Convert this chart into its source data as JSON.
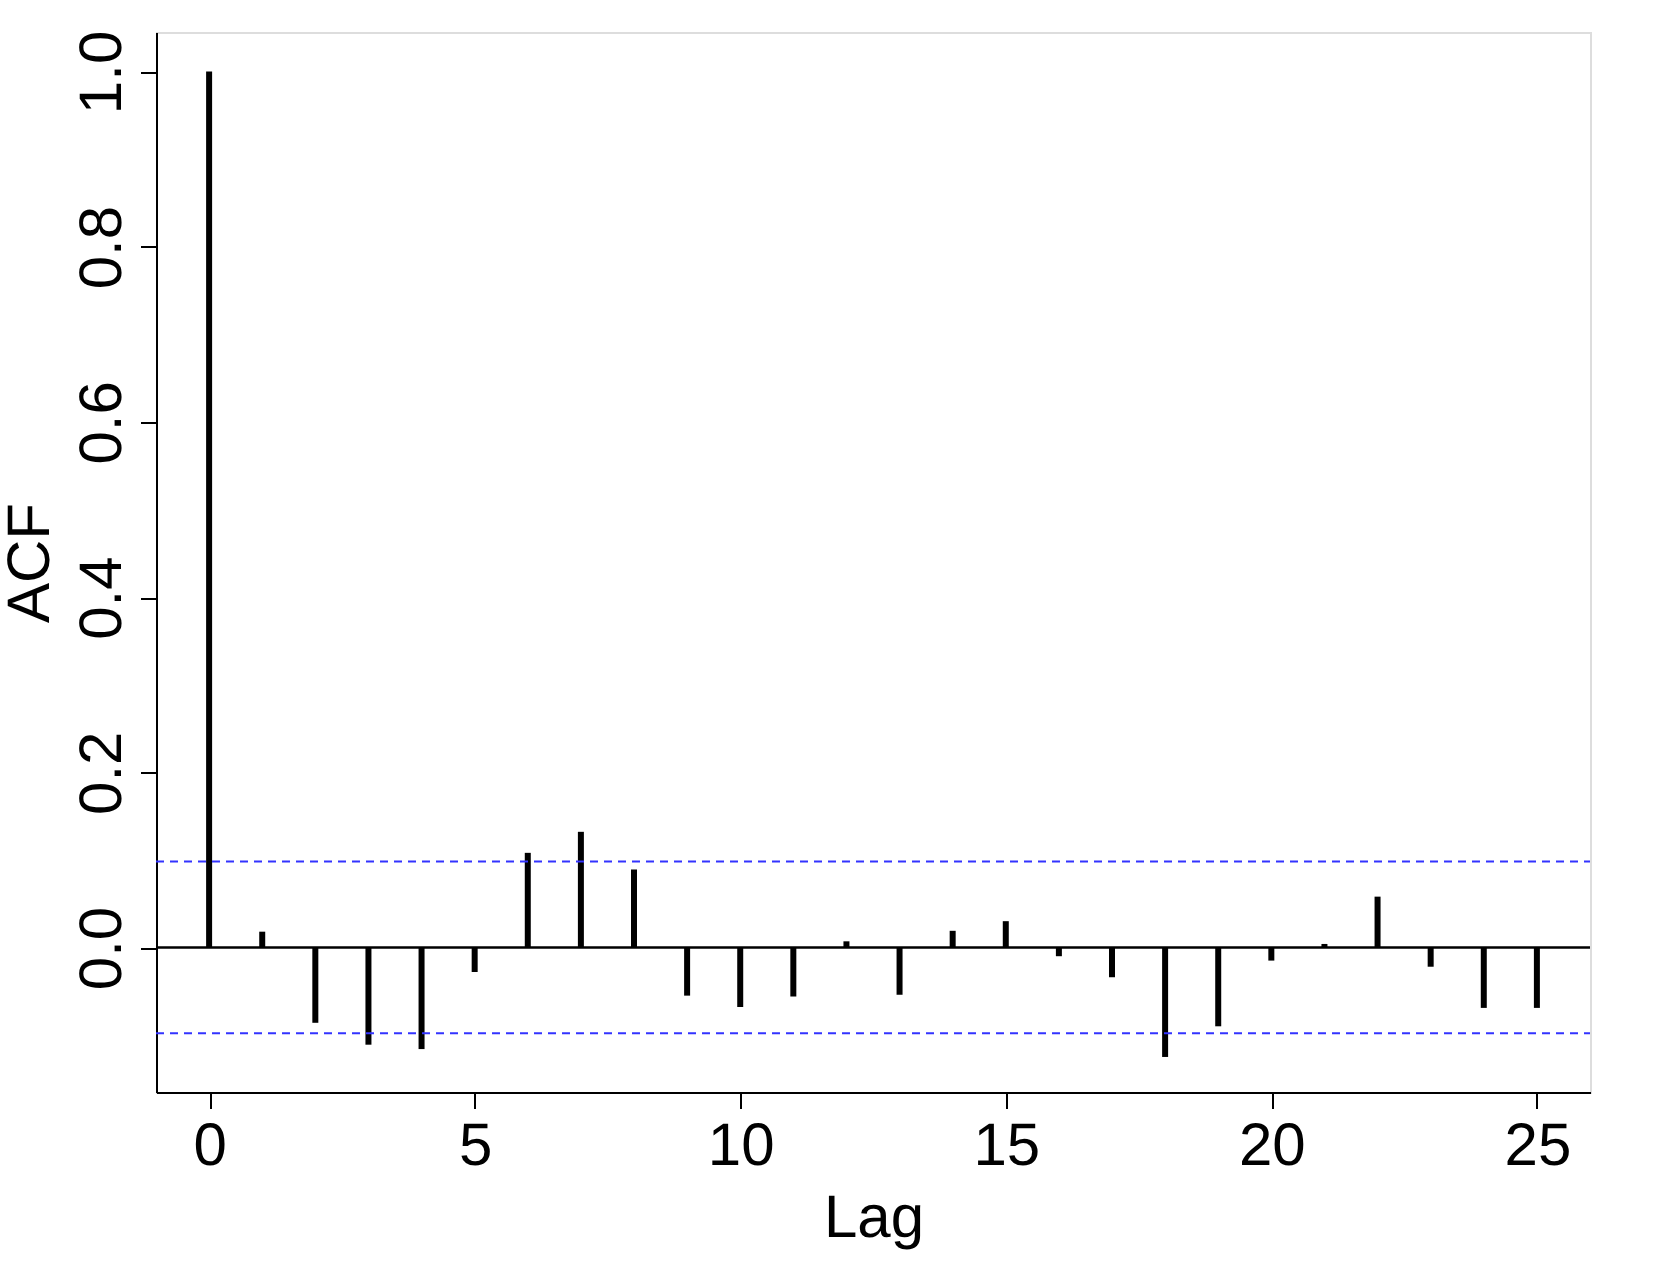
{
  "chart_data": {
    "type": "bar",
    "xlabel": "Lag",
    "ylabel": "ACF",
    "x": [
      0,
      1,
      2,
      3,
      4,
      5,
      6,
      7,
      8,
      9,
      10,
      11,
      12,
      13,
      14,
      15,
      16,
      17,
      18,
      19,
      20,
      21,
      22,
      23,
      24,
      25
    ],
    "series": [
      {
        "color": "#000000",
        "values": [
          1.0,
          0.018,
          -0.086,
          -0.111,
          -0.116,
          -0.028,
          0.108,
          0.132,
          0.089,
          -0.055,
          -0.068,
          -0.056,
          0.007,
          -0.054,
          0.019,
          0.03,
          -0.01,
          -0.034,
          -0.125,
          -0.09,
          -0.015,
          0.004,
          0.058,
          -0.022,
          -0.069,
          -0.069
        ]
      }
    ],
    "xlim": [
      -1,
      26
    ],
    "xticks": [
      0,
      5,
      10,
      15,
      20,
      25
    ],
    "ylim": [
      -0.165,
      1.045
    ],
    "yticks": [
      {
        "value": 0,
        "label": "0.0"
      },
      {
        "value": 0.2,
        "label": "0.2"
      },
      {
        "value": 0.4,
        "label": "0.4"
      },
      {
        "value": 0.6,
        "label": "0.6"
      },
      {
        "value": 0.8,
        "label": "0.8"
      },
      {
        "value": 1,
        "label": "1.0"
      }
    ],
    "ref_lines": [
      {
        "axis": "y",
        "value": 0,
        "color": "#000000",
        "line_style": "solid"
      },
      {
        "axis": "y",
        "value": 0.098,
        "color": "#3333ff",
        "line_style": "dashed"
      },
      {
        "axis": "y",
        "value": -0.098,
        "color": "#3333ff",
        "line_style": "dashed"
      }
    ],
    "tick_labels": true
  }
}
